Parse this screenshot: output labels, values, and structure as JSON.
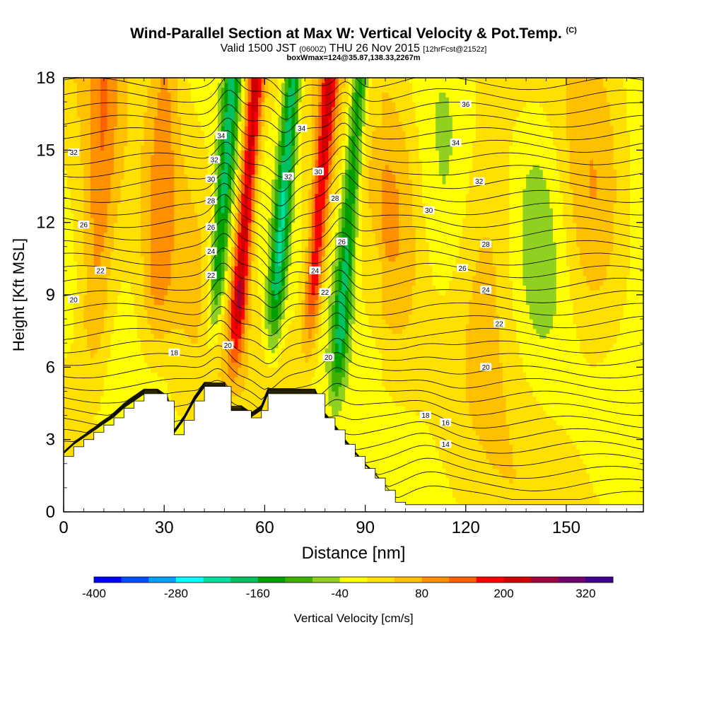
{
  "header": {
    "title": "Wind-Parallel Section at Max W: Vertical Velocity & Pot.Temp.",
    "copyright": "(C)",
    "valid_prefix": "Valid 1500 JST",
    "valid_z": "(0600Z)",
    "valid_date": "THU 26 Nov 2015",
    "forecast": "[12hrFcst@2152z]",
    "box_info": "boxWmax=124@35.87,138.33,2267m"
  },
  "colors": {
    "scale": [
      "#0000ff",
      "#0050ff",
      "#00a0ff",
      "#00ffff",
      "#00e0a0",
      "#00c060",
      "#00a000",
      "#40b000",
      "#90d020",
      "#ffff00",
      "#ffe000",
      "#ffc000",
      "#ff9000",
      "#ff6000",
      "#ff0000",
      "#d00000",
      "#a00040",
      "#700070",
      "#400090"
    ],
    "background_field": "#ffff00",
    "terrain": "#ffffff",
    "contour": "#000000"
  },
  "chart_data": {
    "type": "heatmap",
    "xlabel": "Distance [nm]",
    "ylabel": "Height [Kft MSL]",
    "xlim": [
      0,
      173
    ],
    "ylim": [
      0,
      18
    ],
    "x_ticks": [
      0,
      30,
      60,
      90,
      120,
      150
    ],
    "y_ticks": [
      0,
      3,
      6,
      9,
      12,
      15,
      18
    ],
    "colorbar": {
      "label": "Vertical Velocity [cm/s]",
      "tick_labels": [
        -400,
        -280,
        -160,
        -40,
        80,
        200,
        320
      ],
      "levels": [
        -400,
        -360,
        -320,
        -280,
        -240,
        -200,
        -160,
        -120,
        -80,
        -40,
        0,
        40,
        80,
        120,
        160,
        200,
        240,
        280,
        320,
        360
      ]
    },
    "updraft_bands": [
      {
        "x_center": 53,
        "vertical_velocity_max": 240
      },
      {
        "x_center": 75,
        "vertical_velocity_max": 200
      },
      {
        "x_center": 28,
        "vertical_velocity_max": 80
      },
      {
        "x_center": 10,
        "vertical_velocity_max": 80
      }
    ],
    "downdraft_bands": [
      {
        "x_center": 46,
        "vertical_velocity_min": -160
      },
      {
        "x_center": 64,
        "vertical_velocity_min": -200
      },
      {
        "x_center": 84,
        "vertical_velocity_min": -160
      }
    ],
    "theta_contour_labels": [
      {
        "label": "36",
        "x": 120,
        "y": 16.9
      },
      {
        "label": "34",
        "x": 117,
        "y": 15.3
      },
      {
        "label": "34",
        "x": 71,
        "y": 15.9
      },
      {
        "label": "34",
        "x": 47,
        "y": 15.6
      },
      {
        "label": "32",
        "x": 3,
        "y": 14.9
      },
      {
        "label": "32",
        "x": 124,
        "y": 13.7
      },
      {
        "label": "32",
        "x": 67,
        "y": 13.9
      },
      {
        "label": "32",
        "x": 45,
        "y": 14.6
      },
      {
        "label": "30",
        "x": 109,
        "y": 12.5
      },
      {
        "label": "30",
        "x": 76,
        "y": 14.1
      },
      {
        "label": "30",
        "x": 44,
        "y": 13.8
      },
      {
        "label": "28",
        "x": 126,
        "y": 11.1
      },
      {
        "label": "28",
        "x": 81,
        "y": 13.0
      },
      {
        "label": "28",
        "x": 44,
        "y": 12.9
      },
      {
        "label": "26",
        "x": 6,
        "y": 11.9
      },
      {
        "label": "26",
        "x": 119,
        "y": 10.1
      },
      {
        "label": "26",
        "x": 83,
        "y": 11.2
      },
      {
        "label": "26",
        "x": 44,
        "y": 11.8
      },
      {
        "label": "24",
        "x": 126,
        "y": 9.2
      },
      {
        "label": "24",
        "x": 75,
        "y": 10.0
      },
      {
        "label": "24",
        "x": 44,
        "y": 10.8
      },
      {
        "label": "22",
        "x": 11,
        "y": 10.0
      },
      {
        "label": "22",
        "x": 130,
        "y": 7.8
      },
      {
        "label": "22",
        "x": 78,
        "y": 9.1
      },
      {
        "label": "22",
        "x": 44,
        "y": 9.8
      },
      {
        "label": "20",
        "x": 3,
        "y": 8.8
      },
      {
        "label": "20",
        "x": 126,
        "y": 6.0
      },
      {
        "label": "20",
        "x": 79,
        "y": 6.4
      },
      {
        "label": "20",
        "x": 49,
        "y": 6.9
      },
      {
        "label": "18",
        "x": 33,
        "y": 6.6
      },
      {
        "label": "18",
        "x": 108,
        "y": 4.0
      },
      {
        "label": "16",
        "x": 114,
        "y": 3.7
      },
      {
        "label": "14",
        "x": 114,
        "y": 2.8
      }
    ],
    "terrain_profile": [
      [
        0,
        2.3
      ],
      [
        3,
        2.7
      ],
      [
        6,
        3.0
      ],
      [
        9,
        3.3
      ],
      [
        12,
        3.6
      ],
      [
        15,
        3.9
      ],
      [
        18,
        4.3
      ],
      [
        21,
        4.6
      ],
      [
        24,
        4.9
      ],
      [
        28,
        4.9
      ],
      [
        31,
        4.6
      ],
      [
        33,
        3.2
      ],
      [
        36,
        3.8
      ],
      [
        39,
        4.6
      ],
      [
        42,
        5.2
      ],
      [
        48,
        5.2
      ],
      [
        50,
        4.2
      ],
      [
        53,
        4.2
      ],
      [
        56,
        3.9
      ],
      [
        59,
        4.2
      ],
      [
        61,
        4.9
      ],
      [
        75,
        4.9
      ],
      [
        78,
        3.9
      ],
      [
        81,
        3.4
      ],
      [
        84,
        2.8
      ],
      [
        87,
        2.3
      ],
      [
        90,
        1.8
      ],
      [
        93,
        1.4
      ],
      [
        96,
        0.9
      ],
      [
        99,
        0.4
      ],
      [
        102,
        0.3
      ],
      [
        173,
        0.3
      ]
    ]
  }
}
